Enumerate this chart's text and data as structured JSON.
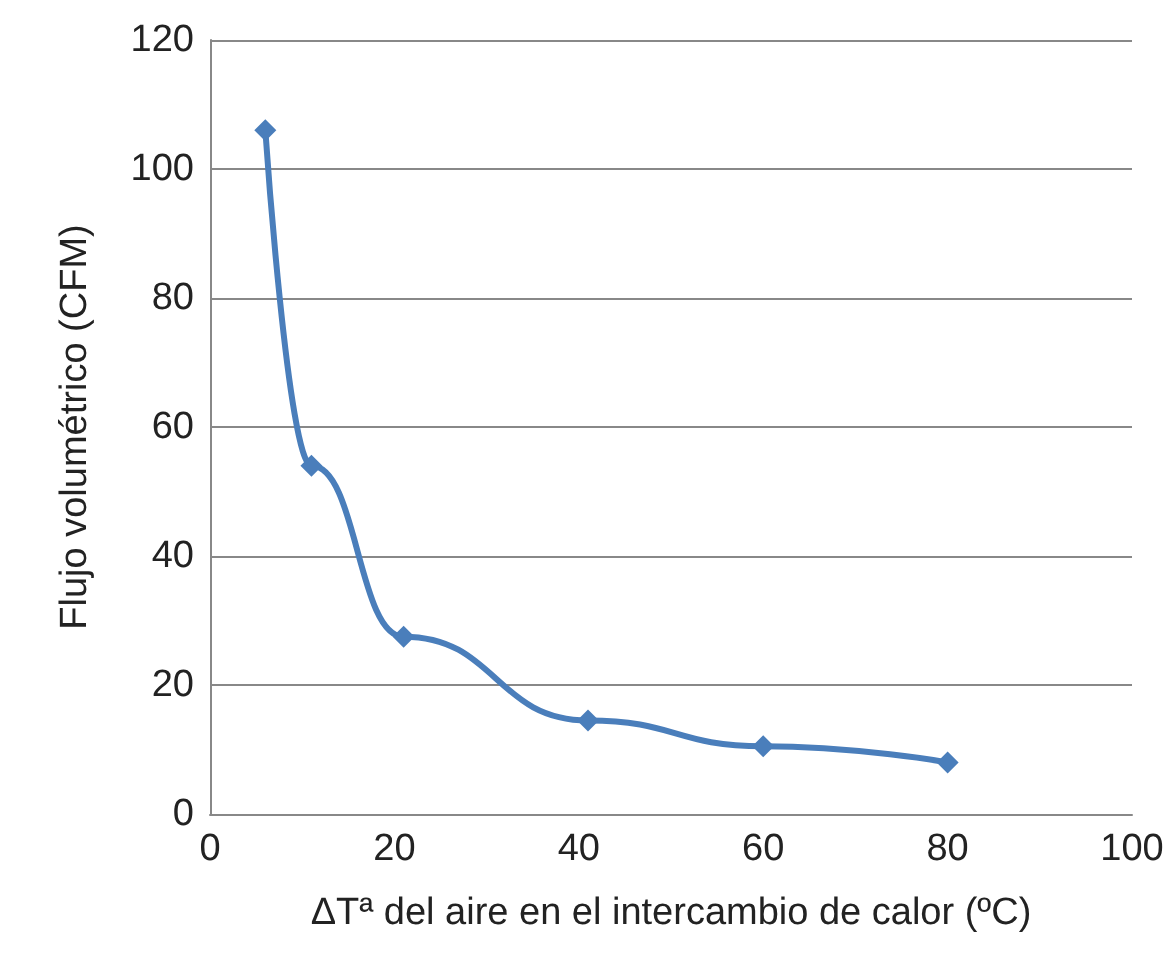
{
  "chart_data": {
    "type": "line",
    "xlabel": "ΔTª del aire en el intercambio de calor (ºC)",
    "ylabel": "Flujo volumétrico (CFM)",
    "x": [
      6,
      11,
      21,
      41,
      60,
      80
    ],
    "series": [
      {
        "color": "#4a7ebb",
        "values": [
          106,
          54,
          27.5,
          14.5,
          10.5,
          8
        ]
      }
    ],
    "xlim": [
      0,
      100
    ],
    "xticks": [
      0,
      20,
      40,
      60,
      80,
      100
    ],
    "ylim": [
      0,
      120
    ],
    "yticks": [
      0,
      20,
      40,
      60,
      80,
      100,
      120
    ],
    "grid": "y",
    "marker": "diamond",
    "line_style": "solid"
  }
}
